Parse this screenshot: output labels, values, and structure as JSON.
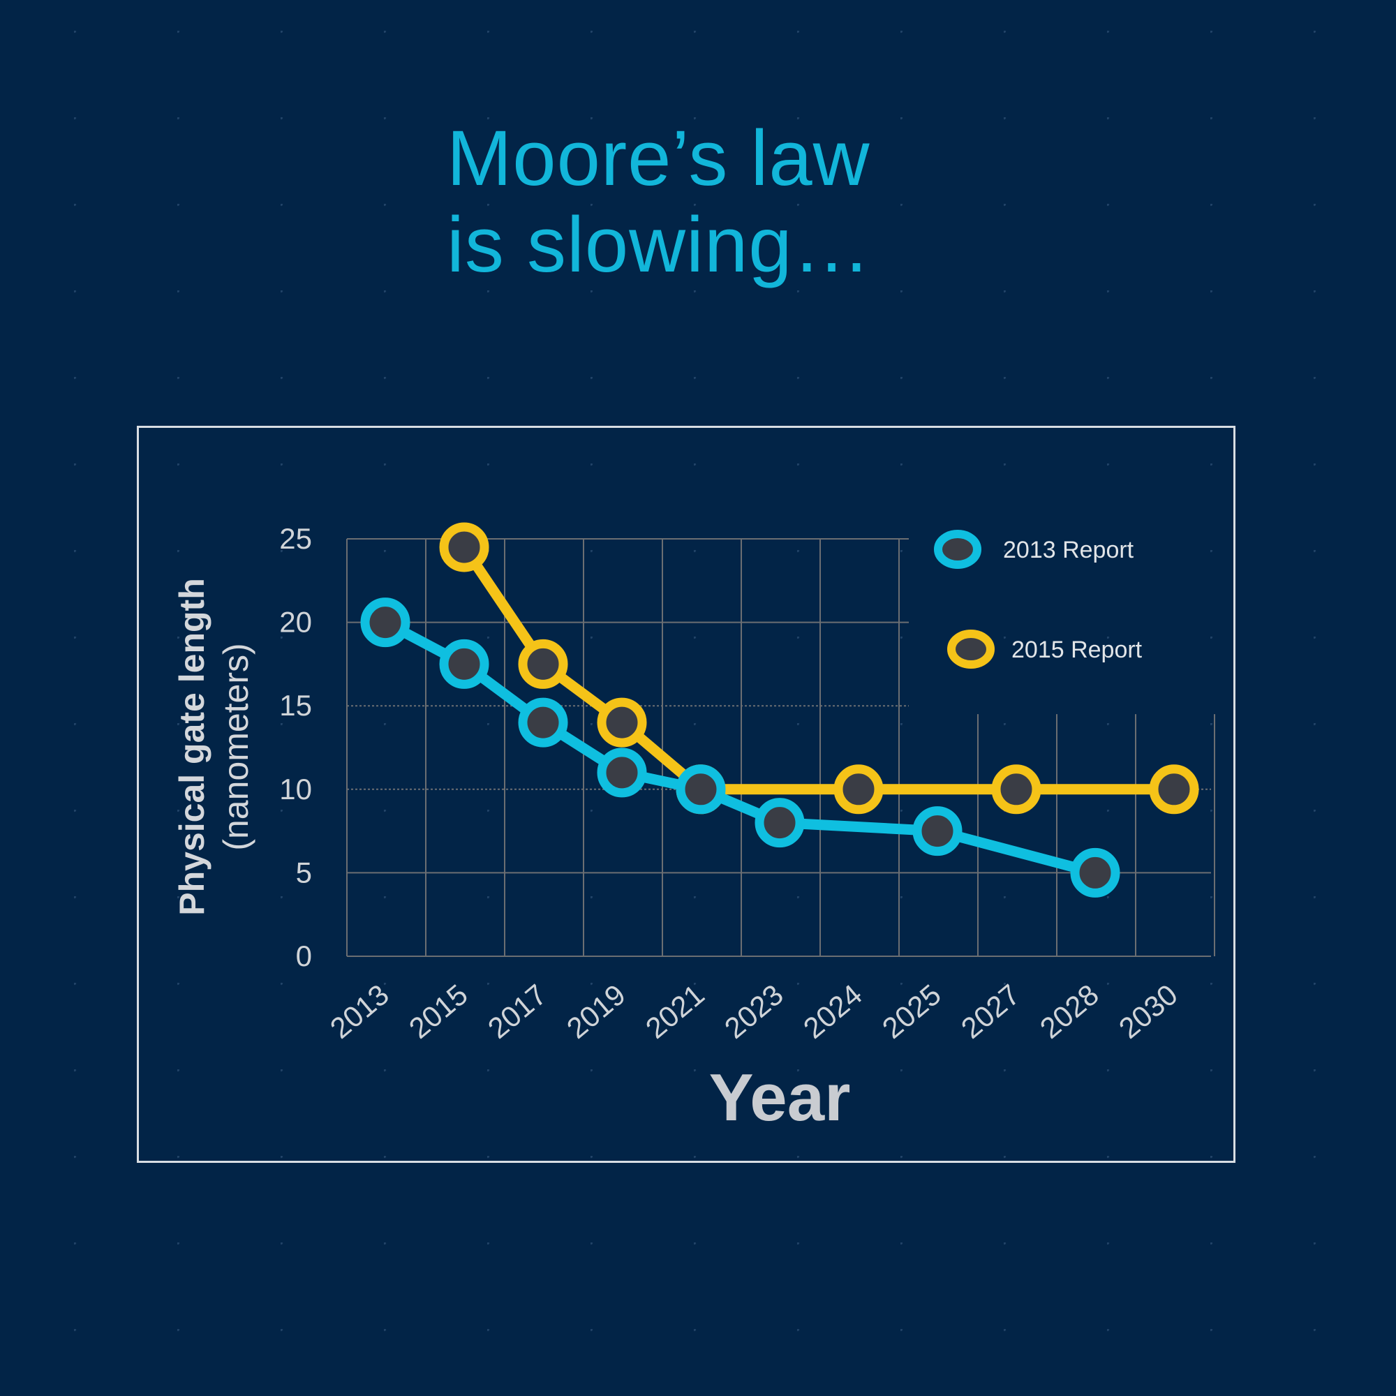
{
  "title": {
    "line1": "Moore’s law",
    "line2": "is slowing…"
  },
  "colors": {
    "background": "#022447",
    "title": "#12b6da",
    "series_2013": "#0fbfe0",
    "series_2015": "#f5c318",
    "marker_fill": "#3a3d45",
    "grid": "#6b6e72",
    "axis_text": "#d0d4d8"
  },
  "chart_data": {
    "type": "line",
    "categories": [
      "2013",
      "2015",
      "2017",
      "2019",
      "2021",
      "2023",
      "2024",
      "2025",
      "2027",
      "2028",
      "2030"
    ],
    "xlabel": "Year",
    "ylabel_line1": "Physical gate length",
    "ylabel_line2": "(nanometers)",
    "ylim": [
      0,
      25
    ],
    "yticks": [
      0,
      5,
      10,
      15,
      20,
      25
    ],
    "grid": true,
    "legend_position": "top-right",
    "series": [
      {
        "name": "2013 Report",
        "color": "#0fbfe0",
        "points": [
          [
            0,
            20
          ],
          [
            1,
            17.5
          ],
          [
            2,
            14
          ],
          [
            3,
            11
          ],
          [
            4,
            10
          ],
          [
            5,
            8
          ],
          [
            7,
            7.5
          ],
          [
            9,
            5
          ]
        ]
      },
      {
        "name": "2015 Report",
        "color": "#f5c318",
        "points": [
          [
            1,
            24.5
          ],
          [
            2,
            17.5
          ],
          [
            3,
            14
          ],
          [
            4,
            10
          ],
          [
            6,
            10
          ],
          [
            8,
            10
          ],
          [
            10,
            10
          ]
        ]
      }
    ]
  }
}
